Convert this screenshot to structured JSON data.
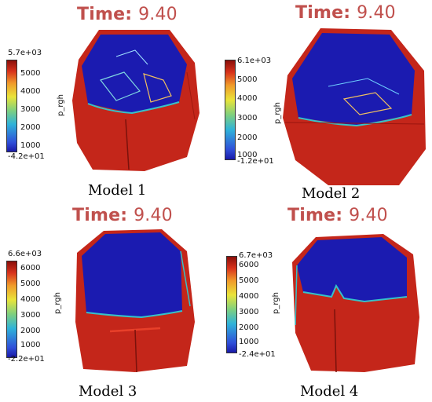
{
  "panels": [
    {
      "time_label": "Time:",
      "time_value": "9.40",
      "model_label": "Model 1",
      "colorbar": {
        "title": "p_rgh",
        "max_label": "5.7e+03",
        "min_label": "-4.2e+01",
        "ticks": [
          "5000",
          "4000",
          "3000",
          "2000",
          "1000"
        ]
      }
    },
    {
      "time_label": "Time:",
      "time_value": "9.40",
      "model_label": "Model 2",
      "colorbar": {
        "title": "p_rgh",
        "max_label": "6.1e+03",
        "min_label": "-1.2e+01",
        "ticks": [
          "5000",
          "4000",
          "3000",
          "2000",
          "1000"
        ]
      }
    },
    {
      "time_label": "Time:",
      "time_value": "9.40",
      "model_label": "Model 3",
      "colorbar": {
        "title": "p_rgh",
        "max_label": "6.6e+03",
        "min_label": "-2.2e+01",
        "ticks": [
          "6000",
          "5000",
          "4000",
          "3000",
          "2000",
          "1000"
        ]
      }
    },
    {
      "time_label": "Time:",
      "time_value": "9.40",
      "model_label": "Model 4",
      "colorbar": {
        "title": "p_rgh",
        "max_label": "6.7e+03",
        "min_label": "-2.4e+01",
        "ticks": [
          "6000",
          "5000",
          "4000",
          "3000",
          "2000",
          "1000"
        ]
      }
    }
  ],
  "colors": {
    "title": "#c0504d",
    "liquid_red": "#c4261a",
    "gas_blue": "#1b1bb0",
    "interface": "#35c2c9"
  }
}
